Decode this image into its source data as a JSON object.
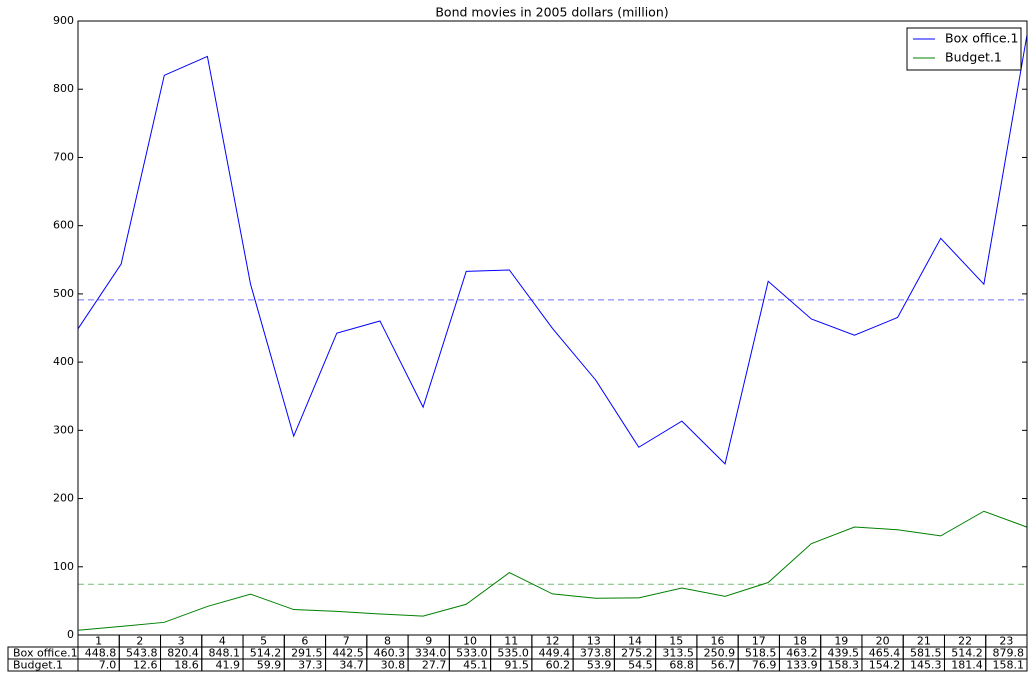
{
  "chart_data": {
    "type": "line",
    "title": "Bond movies in 2005 dollars (million)",
    "categories": [
      "1",
      "2",
      "3",
      "4",
      "5",
      "6",
      "7",
      "8",
      "9",
      "10",
      "11",
      "12",
      "13",
      "14",
      "15",
      "16",
      "17",
      "18",
      "19",
      "20",
      "21",
      "22",
      "23"
    ],
    "series": [
      {
        "name": "Box office.1",
        "color": "#0000ff",
        "values": [
          448.8,
          543.8,
          820.4,
          848.1,
          514.2,
          291.5,
          442.5,
          460.3,
          334.0,
          533.0,
          535.0,
          449.4,
          373.8,
          275.2,
          313.5,
          250.9,
          518.5,
          463.2,
          439.5,
          465.4,
          581.5,
          514.2,
          879.8
        ],
        "value_labels": [
          "448.8",
          "543.8",
          "820.4",
          "848.1",
          "514.2",
          "291.5",
          "442.5",
          "460.3",
          "334.0",
          "533.0",
          "535.0",
          "449.4",
          "373.8",
          "275.2",
          "313.5",
          "250.9",
          "518.5",
          "463.2",
          "439.5",
          "465.4",
          "581.5",
          "514.2",
          "879.8"
        ],
        "mean": 491.2
      },
      {
        "name": "Budget.1",
        "color": "#008000",
        "values": [
          7.0,
          12.6,
          18.6,
          41.9,
          59.9,
          37.3,
          34.7,
          30.8,
          27.7,
          45.1,
          91.5,
          60.2,
          53.9,
          54.5,
          68.8,
          56.7,
          76.9,
          133.9,
          158.3,
          154.2,
          145.3,
          181.4,
          158.1
        ],
        "value_labels": [
          "7.0",
          "12.6",
          "18.6",
          "41.9",
          "59.9",
          "37.3",
          "34.7",
          "30.8",
          "27.7",
          "45.1",
          "91.5",
          "60.2",
          "53.9",
          "54.5",
          "68.8",
          "56.7",
          "76.9",
          "133.9",
          "158.3",
          "154.2",
          "145.3",
          "181.4",
          "158.1"
        ],
        "mean": 74.3
      }
    ],
    "ylim": [
      0,
      900
    ],
    "yticks": [
      0,
      100,
      200,
      300,
      400,
      500,
      600,
      700,
      800,
      900
    ],
    "legend": "upper right"
  }
}
